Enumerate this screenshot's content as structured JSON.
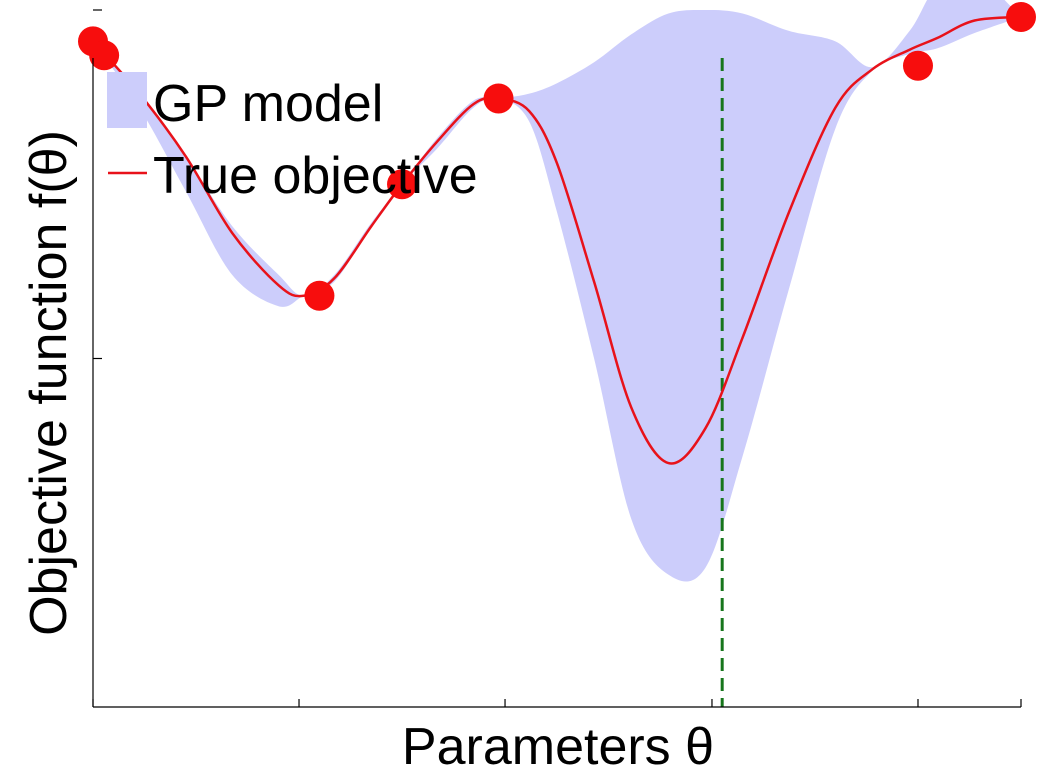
{
  "chart_data": {
    "type": "line",
    "xlabel": "Parameters θ",
    "ylabel": "Objective function f(θ)",
    "xlim": [
      0,
      1
    ],
    "ylim": [
      0,
      1
    ],
    "xticks": [
      0,
      0.222,
      0.444,
      0.667,
      0.889,
      1.0
    ],
    "yticks": [
      0.5,
      1.0
    ],
    "grid": false,
    "legend": {
      "position": "top-left",
      "entries": [
        {
          "name": "GP model",
          "kind": "band",
          "color": "#cccdfb"
        },
        {
          "name": "True objective",
          "kind": "line",
          "color": "#e8121a"
        }
      ]
    },
    "series": [
      {
        "name": "True objective",
        "color": "#e8121a",
        "x": [
          0.0,
          0.05,
          0.1,
          0.15,
          0.2,
          0.227,
          0.26,
          0.3,
          0.333,
          0.37,
          0.41,
          0.437,
          0.47,
          0.5,
          0.54,
          0.58,
          0.62,
          0.66,
          0.7,
          0.75,
          0.8,
          0.84,
          0.88,
          0.91,
          0.95,
          1.0
        ],
        "y": [
          0.955,
          0.88,
          0.79,
          0.68,
          0.605,
          0.59,
          0.615,
          0.69,
          0.75,
          0.81,
          0.865,
          0.873,
          0.855,
          0.78,
          0.61,
          0.43,
          0.35,
          0.4,
          0.53,
          0.71,
          0.86,
          0.915,
          0.943,
          0.96,
          0.985,
          0.99
        ]
      },
      {
        "name": "GP model",
        "type": "band",
        "color": "#cccdfb",
        "x": [
          0.0,
          0.05,
          0.1,
          0.15,
          0.2,
          0.227,
          0.26,
          0.3,
          0.333,
          0.37,
          0.41,
          0.437,
          0.47,
          0.5,
          0.54,
          0.58,
          0.62,
          0.66,
          0.7,
          0.75,
          0.8,
          0.84,
          0.88,
          0.91,
          0.95,
          1.0
        ],
        "lower": [
          0.955,
          0.86,
          0.74,
          0.62,
          0.575,
          0.59,
          0.61,
          0.69,
          0.75,
          0.8,
          0.86,
          0.873,
          0.84,
          0.71,
          0.5,
          0.27,
          0.19,
          0.2,
          0.36,
          0.6,
          0.83,
          0.913,
          0.937,
          0.945,
          0.967,
          0.99
        ],
        "upper": [
          0.955,
          0.88,
          0.79,
          0.69,
          0.62,
          0.59,
          0.62,
          0.695,
          0.75,
          0.815,
          0.87,
          0.873,
          0.88,
          0.895,
          0.925,
          0.965,
          0.995,
          1.0,
          0.995,
          0.97,
          0.955,
          0.918,
          0.97,
          1.035,
          1.05,
          0.99
        ]
      }
    ],
    "observations": {
      "name": "Observed points",
      "color": "#f70d0d",
      "x": [
        0.0,
        0.012,
        0.244,
        0.333,
        0.437,
        0.889,
        1.0
      ],
      "y": [
        0.955,
        0.935,
        0.59,
        0.75,
        0.873,
        0.92,
        0.99
      ]
    },
    "next_query": {
      "x": 0.678,
      "color": "#17761c",
      "style": "dashed"
    }
  }
}
